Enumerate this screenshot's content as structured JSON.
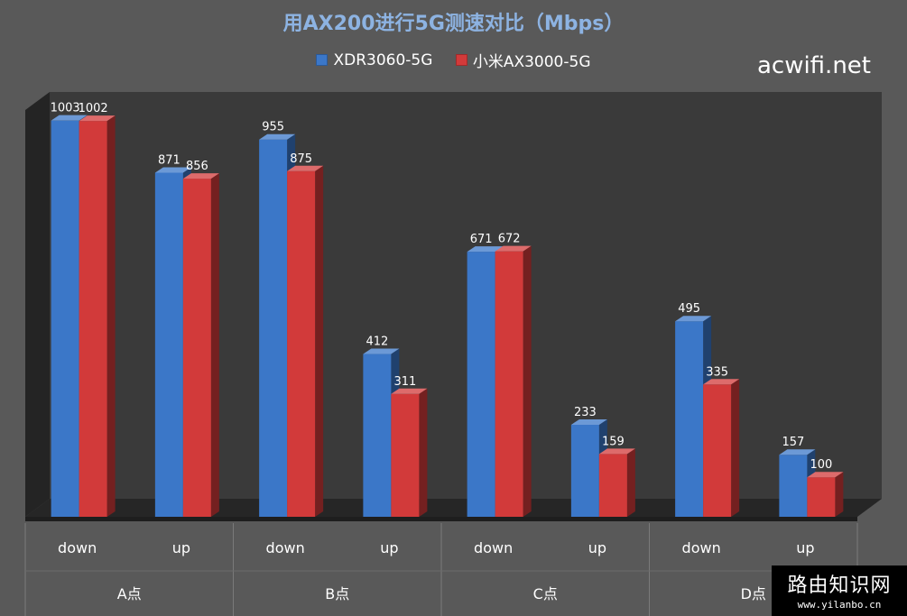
{
  "chart_data": {
    "type": "bar",
    "title": "用AX200进行5G测速对比（Mbps）",
    "groups": [
      "A点",
      "B点",
      "C点",
      "D点"
    ],
    "categories": [
      "down",
      "up",
      "down",
      "up",
      "down",
      "up",
      "down",
      "up"
    ],
    "series": [
      {
        "name": "XDR3060-5G",
        "color": "#3b77c8",
        "values": [
          1003,
          871,
          955,
          412,
          671,
          233,
          495,
          157
        ]
      },
      {
        "name": "小米AX3000-5G",
        "color": "#d23a3a",
        "values": [
          1002,
          856,
          875,
          311,
          672,
          159,
          335,
          100
        ]
      }
    ],
    "ylim": [
      0,
      1100
    ],
    "grid": false,
    "legend": "top"
  },
  "watermark": "acwifi.net",
  "badge": {
    "main": "路由知识网",
    "sub": "www.yilanbo.cn"
  }
}
